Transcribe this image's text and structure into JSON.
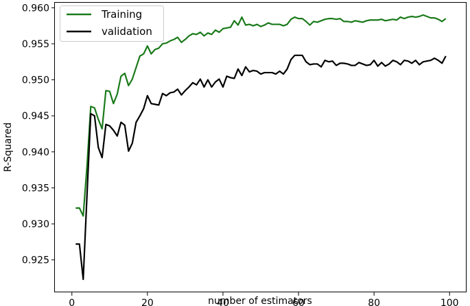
{
  "chart_data": {
    "type": "line",
    "xlabel": "number of estimators",
    "ylabel": "R-Squared",
    "xlim": [
      -4.5,
      104.5
    ],
    "ylim": [
      0.9205,
      0.9607
    ],
    "xticks": [
      0,
      20,
      40,
      60,
      80,
      100
    ],
    "xtick_labels": [
      "0",
      "20",
      "40",
      "60",
      "80",
      "100"
    ],
    "yticks": [
      0.925,
      0.93,
      0.935,
      0.94,
      0.945,
      0.95,
      0.955,
      0.96
    ],
    "ytick_labels": [
      "0.925",
      "0.930",
      "0.935",
      "0.940",
      "0.945",
      "0.950",
      "0.955",
      "0.960"
    ],
    "grid": false,
    "legend_position": "top-left",
    "x": [
      1,
      2,
      3,
      4,
      5,
      6,
      7,
      8,
      9,
      10,
      11,
      12,
      13,
      14,
      15,
      16,
      17,
      18,
      19,
      20,
      21,
      22,
      23,
      24,
      25,
      26,
      27,
      28,
      29,
      30,
      31,
      32,
      33,
      34,
      35,
      36,
      37,
      38,
      39,
      40,
      41,
      42,
      43,
      44,
      45,
      46,
      47,
      48,
      49,
      50,
      51,
      52,
      53,
      54,
      55,
      56,
      57,
      58,
      59,
      60,
      61,
      62,
      63,
      64,
      65,
      66,
      67,
      68,
      69,
      70,
      71,
      72,
      73,
      74,
      75,
      76,
      77,
      78,
      79,
      80,
      81,
      82,
      83,
      84,
      85,
      86,
      87,
      88,
      89,
      90,
      91,
      92,
      93,
      94,
      95,
      96,
      97,
      98,
      99
    ],
    "series": [
      {
        "name": "Training",
        "color": "#1a7a1a",
        "values": [
          0.9322,
          0.9322,
          0.9311,
          0.938,
          0.9463,
          0.9461,
          0.9445,
          0.9432,
          0.9485,
          0.9484,
          0.9467,
          0.948,
          0.9505,
          0.9509,
          0.9492,
          0.9501,
          0.9517,
          0.9533,
          0.9536,
          0.9547,
          0.9536,
          0.9542,
          0.9544,
          0.955,
          0.9551,
          0.9554,
          0.9556,
          0.9559,
          0.9552,
          0.9556,
          0.9561,
          0.9564,
          0.9563,
          0.9566,
          0.9561,
          0.9565,
          0.9563,
          0.9569,
          0.9566,
          0.9571,
          0.9572,
          0.9573,
          0.9582,
          0.9576,
          0.9587,
          0.9576,
          0.9577,
          0.9575,
          0.9577,
          0.9574,
          0.9576,
          0.9579,
          0.9577,
          0.9577,
          0.9577,
          0.9575,
          0.9577,
          0.9584,
          0.9587,
          0.9585,
          0.9585,
          0.9581,
          0.9576,
          0.9581,
          0.958,
          0.9582,
          0.9584,
          0.9585,
          0.9585,
          0.9584,
          0.9585,
          0.9581,
          0.9581,
          0.958,
          0.9582,
          0.9581,
          0.958,
          0.9582,
          0.9583,
          0.9583,
          0.9583,
          0.9584,
          0.9582,
          0.9583,
          0.9584,
          0.9583,
          0.9587,
          0.9585,
          0.9587,
          0.9588,
          0.9587,
          0.9588,
          0.959,
          0.9588,
          0.9586,
          0.9586,
          0.9584,
          0.9581,
          0.9585
        ]
      },
      {
        "name": "validation",
        "color": "#000000",
        "values": [
          0.9272,
          0.9272,
          0.9223,
          0.934,
          0.9453,
          0.945,
          0.9406,
          0.9392,
          0.9438,
          0.9436,
          0.943,
          0.9422,
          0.9441,
          0.9437,
          0.9401,
          0.9412,
          0.9441,
          0.945,
          0.946,
          0.9478,
          0.9467,
          0.9466,
          0.9465,
          0.9481,
          0.9478,
          0.9482,
          0.9483,
          0.9487,
          0.9479,
          0.9485,
          0.949,
          0.9496,
          0.9493,
          0.9501,
          0.949,
          0.95,
          0.949,
          0.9497,
          0.9501,
          0.949,
          0.9505,
          0.9503,
          0.9502,
          0.9515,
          0.9506,
          0.9518,
          0.9511,
          0.9513,
          0.9512,
          0.9508,
          0.951,
          0.951,
          0.951,
          0.9508,
          0.9512,
          0.9508,
          0.9515,
          0.9528,
          0.9534,
          0.9534,
          0.9534,
          0.9525,
          0.9521,
          0.9522,
          0.9522,
          0.9518,
          0.9527,
          0.9525,
          0.9526,
          0.952,
          0.9523,
          0.9523,
          0.9522,
          0.952,
          0.952,
          0.9524,
          0.9522,
          0.952,
          0.9521,
          0.9527,
          0.9519,
          0.9524,
          0.9519,
          0.9522,
          0.9527,
          0.9525,
          0.9521,
          0.9527,
          0.9526,
          0.9523,
          0.9527,
          0.9521,
          0.9525,
          0.9526,
          0.9527,
          0.953,
          0.9527,
          0.9523,
          0.9533
        ]
      }
    ]
  }
}
